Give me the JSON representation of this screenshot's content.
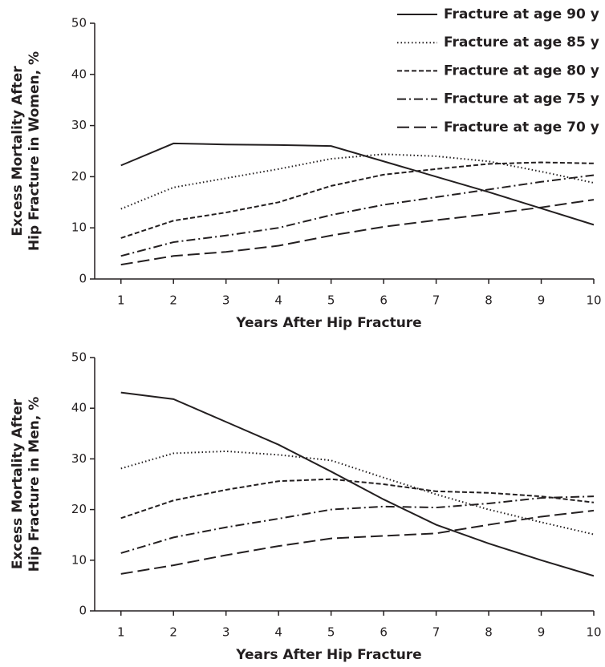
{
  "chart_data": [
    {
      "type": "line",
      "ylabel": [
        "Excess Mortality After",
        "Hip Fracture in Women, %"
      ],
      "xlabel": "Years After Hip Fracture",
      "x": [
        1,
        2,
        3,
        4,
        5,
        6,
        7,
        8,
        9,
        10
      ],
      "xlim": [
        0.5,
        10
      ],
      "xticks": [
        1,
        2,
        3,
        4,
        5,
        6,
        7,
        8,
        9,
        10
      ],
      "ylim": [
        0,
        50
      ],
      "yticks": [
        0,
        10,
        20,
        30,
        40,
        50
      ],
      "legend": "top-right",
      "series": [
        {
          "name": "Fracture at age 90 y",
          "color": "#231f20",
          "dash": "solid",
          "values": [
            22.2,
            26.5,
            26.3,
            26.2,
            26,
            23,
            20,
            17,
            13.8,
            10.6
          ]
        },
        {
          "name": "Fracture at age 85 y",
          "color": "#231f20",
          "dash": "dotted",
          "values": [
            13.7,
            17.9,
            19.7,
            21.5,
            23.5,
            24.4,
            24,
            23,
            21,
            18.8
          ]
        },
        {
          "name": "Fracture at age 80 y",
          "color": "#231f20",
          "dash": "dashed",
          "values": [
            8,
            11.4,
            13,
            15,
            18.2,
            20.4,
            21.5,
            22.5,
            22.8,
            22.6
          ]
        },
        {
          "name": "Fracture at age 75 y",
          "color": "#231f20",
          "dash": "dashdot",
          "values": [
            4.5,
            7.2,
            8.5,
            10,
            12.5,
            14.5,
            16,
            17.5,
            19,
            20.3
          ]
        },
        {
          "name": "Fracture at age 70 y",
          "color": "#231f20",
          "dash": "longdash",
          "values": [
            2.8,
            4.5,
            5.3,
            6.5,
            8.5,
            10.2,
            11.5,
            12.7,
            14,
            15.5
          ]
        }
      ]
    },
    {
      "type": "line",
      "ylabel": [
        "Excess Mortality After",
        "Hip Fracture in Men, %"
      ],
      "xlabel": "Years After Hip Fracture",
      "x": [
        1,
        2,
        3,
        4,
        5,
        6,
        7,
        8,
        9,
        10
      ],
      "xlim": [
        0.5,
        10
      ],
      "xticks": [
        1,
        2,
        3,
        4,
        5,
        6,
        7,
        8,
        9,
        10
      ],
      "ylim": [
        0,
        50
      ],
      "yticks": [
        0,
        10,
        20,
        30,
        40,
        50
      ],
      "series": [
        {
          "color": "#231f20",
          "dash": "solid",
          "values": [
            43.1,
            41.8,
            37.3,
            32.8,
            27.5,
            22,
            17,
            13.3,
            10,
            6.9
          ]
        },
        {
          "color": "#231f20",
          "dash": "dotted",
          "values": [
            28.1,
            31.1,
            31.5,
            30.8,
            29.7,
            26.3,
            23,
            20,
            17.5,
            15.1
          ]
        },
        {
          "color": "#231f20",
          "dash": "dashed",
          "values": [
            18.3,
            21.8,
            23.9,
            25.6,
            26,
            25,
            23.6,
            23.3,
            22.6,
            21.4
          ]
        },
        {
          "color": "#231f20",
          "dash": "dashdot",
          "values": [
            11.4,
            14.5,
            16.5,
            18.2,
            20,
            20.6,
            20.4,
            21.2,
            22.3,
            22.6
          ]
        },
        {
          "color": "#231f20",
          "dash": "longdash",
          "values": [
            7.3,
            9,
            11,
            12.8,
            14.3,
            14.8,
            15.3,
            17,
            18.6,
            19.8
          ]
        }
      ]
    }
  ]
}
